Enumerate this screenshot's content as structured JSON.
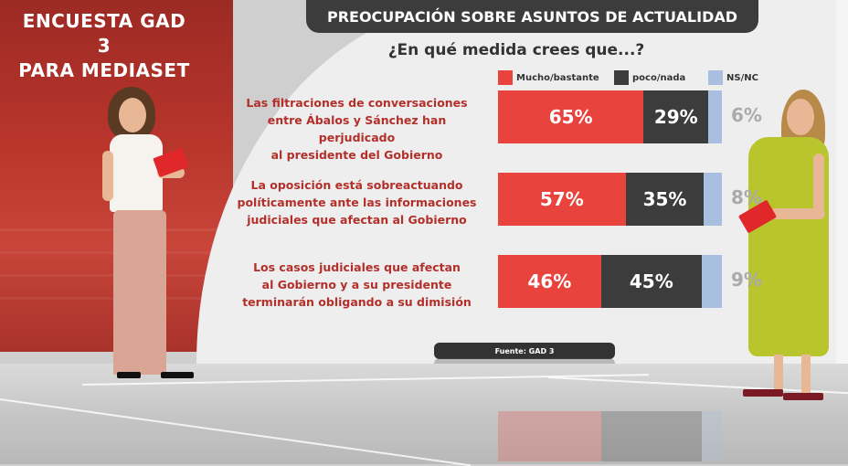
{
  "headline": {
    "line1": "ENCUESTA GAD 3",
    "line2": "PARA MEDIASET"
  },
  "title": "PREOCUPACIÓN SOBRE ASUNTOS DE ACTUALIDAD",
  "subtitle": "¿En qué medida crees que...?",
  "source": "Fuente: GAD 3",
  "colors": {
    "mucho": "#e8433d",
    "poco": "#3c3c3c",
    "nsnc": "#a9bfe0",
    "question": "#b3302a"
  },
  "chart_data": {
    "type": "bar",
    "stacked": true,
    "orientation": "horizontal",
    "title": "PREOCUPACIÓN SOBRE ASUNTOS DE ACTUALIDAD",
    "subtitle": "¿En qué medida crees que...?",
    "legend": [
      "Mucho/bastante",
      "poco/nada",
      "NS/NC"
    ],
    "categories": [
      [
        "Las filtraciones de conversaciones",
        "entre Ábalos y Sánchez han perjudicado",
        "al presidente del Gobierno"
      ],
      [
        "La oposición está sobreactuando",
        "políticamente ante las informaciones",
        "judiciales que afectan al Gobierno"
      ],
      [
        "Los casos judiciales que afectan",
        "al Gobierno y a su presidente",
        "terminarán obligando a su dimisión"
      ]
    ],
    "series": [
      {
        "name": "Mucho/bastante",
        "values": [
          65,
          57,
          46
        ],
        "labels": [
          "65%",
          "57%",
          "46%"
        ]
      },
      {
        "name": "poco/nada",
        "values": [
          29,
          35,
          45
        ],
        "labels": [
          "29%",
          "35%",
          "45%"
        ]
      },
      {
        "name": "NS/NC",
        "values": [
          6,
          8,
          9
        ],
        "labels": [
          "6%",
          "8%",
          "9%"
        ]
      }
    ],
    "xlim": [
      0,
      100
    ]
  }
}
